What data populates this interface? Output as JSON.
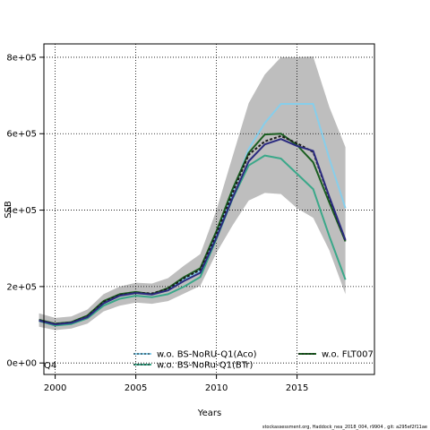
{
  "chart_data": {
    "type": "line",
    "xlabel": "Years",
    "ylabel": "SSB",
    "xlim": [
      1999.3,
      2019.8
    ],
    "ylim": [
      -30000,
      835000
    ],
    "x_ticks": [
      2000,
      2005,
      2010,
      2015
    ],
    "y_ticks": [
      0,
      200000,
      400000,
      600000,
      800000
    ],
    "y_tick_labels": [
      "0e+00",
      "2e+05",
      "4e+05",
      "6e+05",
      "8e+05"
    ],
    "grid": true,
    "legend_position": "bottom",
    "corner_label": "Q4",
    "footnote": "stockassessment.org, Haddock_nea_2018_004, r9904 , git: a295ef2f11ae",
    "band": {
      "color": "#bebebe",
      "x": [
        1999,
        2000,
        2001,
        2002,
        2003,
        2004,
        2005,
        2006,
        2007,
        2008,
        2009,
        2010,
        2011,
        2012,
        2013,
        2014,
        2015,
        2016,
        2017,
        2018
      ],
      "upper": [
        130000,
        118000,
        122000,
        140000,
        180000,
        200000,
        210000,
        208000,
        222000,
        255000,
        285000,
        400000,
        540000,
        680000,
        755000,
        800000,
        800000,
        802000,
        670000,
        565000
      ],
      "lower": [
        95000,
        86000,
        90000,
        103000,
        135000,
        150000,
        158000,
        155000,
        162000,
        182000,
        202000,
        288000,
        360000,
        425000,
        445000,
        442000,
        405000,
        380000,
        295000,
        180000
      ]
    },
    "series": [
      {
        "name": "w.o. BS-NoRU-Q1(Aco)",
        "color": "#87ceeb",
        "dash": "none",
        "values": [
          112000,
          101000,
          105000,
          121000,
          159000,
          176000,
          184000,
          181000,
          192000,
          219000,
          242000,
          338000,
          445000,
          560000,
          628000,
          678000,
          678000,
          678000,
          535000,
          405000
        ]
      },
      {
        "name": "w.o. BS-NoRu-Q1(BTr)",
        "color": "#3aa889",
        "dash": "none",
        "values": [
          110000,
          98000,
          102000,
          117000,
          150000,
          168000,
          176000,
          172000,
          180000,
          200000,
          225000,
          325000,
          430000,
          517000,
          543000,
          535000,
          495000,
          455000,
          332000,
          218000
        ]
      },
      {
        "name": "w.o. FLT007",
        "color": "#1a5e20",
        "dash": "none",
        "values": [
          113000,
          103000,
          107000,
          124000,
          162000,
          180000,
          186000,
          180000,
          196000,
          225000,
          248000,
          345000,
          455000,
          550000,
          598000,
          600000,
          570000,
          525000,
          420000,
          318000
        ]
      },
      {
        "name": "",
        "color": "#1a1a1a",
        "dash": "3,2",
        "values": [
          112000,
          102000,
          106000,
          122000,
          160000,
          178000,
          184000,
          182000,
          194000,
          222000,
          244000,
          338000,
          445000,
          545000,
          580000,
          594000,
          575000,
          552000,
          432000,
          320000
        ]
      },
      {
        "name": "",
        "color": "#2b2b80",
        "dash": "none",
        "values": [
          111000,
          101000,
          105000,
          120000,
          156000,
          176000,
          183000,
          179000,
          190000,
          215000,
          236000,
          328000,
          432000,
          528000,
          572000,
          586000,
          568000,
          555000,
          435000,
          322000
        ]
      }
    ]
  }
}
